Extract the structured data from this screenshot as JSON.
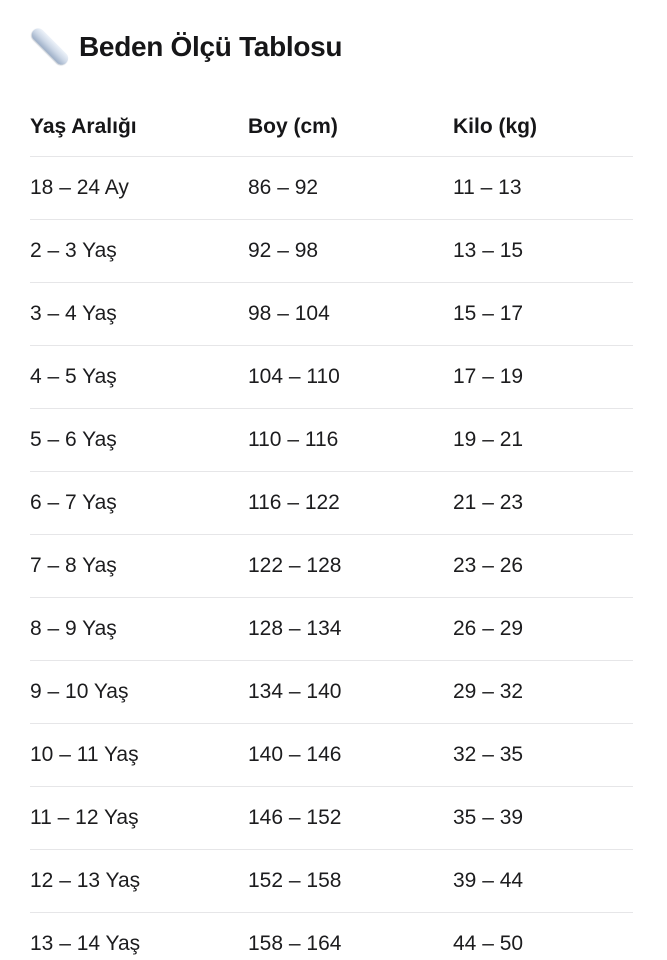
{
  "header": {
    "icon": "ruler",
    "title": "Beden Ölçü Tablosu"
  },
  "table": {
    "columns": [
      "Yaş Aralığı",
      "Boy (cm)",
      "Kilo (kg)"
    ],
    "rows": [
      [
        "18 – 24 Ay",
        "86 – 92",
        "11 – 13"
      ],
      [
        "2 – 3 Yaş",
        "92 – 98",
        "13 – 15"
      ],
      [
        "3 – 4 Yaş",
        "98 – 104",
        "15 – 17"
      ],
      [
        "4 – 5 Yaş",
        "104 – 110",
        "17 – 19"
      ],
      [
        "5 – 6 Yaş",
        "110 – 116",
        "19 – 21"
      ],
      [
        "6 – 7 Yaş",
        "116 – 122",
        "21 – 23"
      ],
      [
        "7 – 8 Yaş",
        "122 – 128",
        "23 – 26"
      ],
      [
        "8 – 9 Yaş",
        "128 – 134",
        "26 – 29"
      ],
      [
        "9 – 10 Yaş",
        "134 – 140",
        "29 – 32"
      ],
      [
        "10 – 11 Yaş",
        "140 – 146",
        "32 – 35"
      ],
      [
        "11 – 12 Yaş",
        "146 – 152",
        "35 – 39"
      ],
      [
        "12 – 13 Yaş",
        "152 – 158",
        "39 – 44"
      ],
      [
        "13 – 14 Yaş",
        "158 – 164",
        "44 – 50"
      ]
    ]
  },
  "colors": {
    "text": "#1c1c1e",
    "title": "#161618",
    "divider": "#e6e6e8",
    "background": "#ffffff",
    "icon_highlight": "#eef3fa",
    "icon_mid": "#ccd7e6",
    "icon_shadow": "#9caec6"
  }
}
